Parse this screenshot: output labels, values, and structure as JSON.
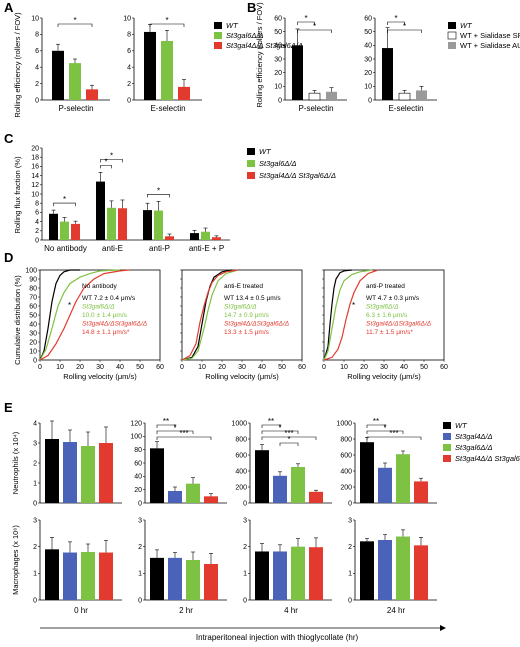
{
  "colors": {
    "black": "#000000",
    "green": "#7dc242",
    "red": "#e23a2e",
    "blue": "#4a62b8",
    "gray": "#9a9a9a",
    "white": "#ffffff"
  },
  "panel_labels": [
    "A",
    "B",
    "C",
    "D",
    "E"
  ],
  "bottom_label": "Intraperitoneal injection with thioglycollate (hr)",
  "chart_data": [
    {
      "panel": "A",
      "type": "bar",
      "ylabel": "Rolling efficiency (rollers / FOV)",
      "ylim": [
        0,
        10
      ],
      "legend": [
        "WT",
        "St3gal6Δ/Δ",
        "St3gal4Δ/Δ St3gal6Δ/Δ"
      ],
      "colors": [
        "#000000",
        "#7dc242",
        "#e23a2e"
      ],
      "groups": [
        {
          "category": "P-selectin",
          "values": [
            6.0,
            4.5,
            1.3
          ],
          "errors": [
            0.8,
            0.5,
            0.5
          ],
          "sig": [
            {
              "from": 0,
              "to": 2,
              "label": "*"
            }
          ]
        },
        {
          "category": "E-selectin",
          "values": [
            8.3,
            7.2,
            1.6
          ],
          "errors": [
            0.9,
            1.3,
            0.9
          ],
          "sig": [
            {
              "from": 0,
              "to": 2,
              "label": "*"
            }
          ]
        }
      ]
    },
    {
      "panel": "B",
      "type": "bar",
      "ylabel": "Rolling efficiency (rollers / FOV)",
      "ylim": [
        0,
        60
      ],
      "legend": [
        "WT",
        "WT + Sialidase SP",
        "WT + Sialidase AU"
      ],
      "colors": [
        "#000000",
        "#ffffff",
        "#9a9a9a"
      ],
      "groups": [
        {
          "category": "P-selectin",
          "values": [
            40,
            5,
            6
          ],
          "errors": [
            12,
            2,
            3
          ],
          "sig": [
            {
              "from": 0,
              "to": 1,
              "label": "*"
            },
            {
              "from": 0,
              "to": 2,
              "label": "*"
            }
          ]
        },
        {
          "category": "E-selectin",
          "values": [
            38,
            5,
            7
          ],
          "errors": [
            15,
            2,
            3
          ],
          "sig": [
            {
              "from": 0,
              "to": 1,
              "label": "*"
            },
            {
              "from": 0,
              "to": 2,
              "label": "*"
            }
          ]
        }
      ]
    },
    {
      "panel": "C",
      "type": "bar",
      "ylabel": "Rolling flux fraction (%)",
      "ylim": [
        0,
        20
      ],
      "yticks": [
        0,
        2,
        4,
        6,
        8,
        10,
        12,
        14,
        16,
        18,
        20
      ],
      "legend": [
        "WT",
        "St3gal6Δ/Δ",
        "St3gal4Δ/Δ St3gal6Δ/Δ"
      ],
      "colors": [
        "#000000",
        "#7dc242",
        "#e23a2e"
      ],
      "groups": [
        {
          "category": "No antibody",
          "values": [
            5.7,
            4.0,
            3.5
          ],
          "errors": [
            0.8,
            0.9,
            0.6
          ],
          "sig": [
            {
              "from": 0,
              "to": 2,
              "label": "*"
            }
          ]
        },
        {
          "category": "anti-E",
          "values": [
            12.7,
            7.0,
            6.9
          ],
          "errors": [
            2.0,
            1.5,
            1.8
          ],
          "sig": [
            {
              "from": 0,
              "to": 1,
              "label": "*"
            },
            {
              "from": 0,
              "to": 2,
              "label": "*"
            }
          ]
        },
        {
          "category": "anti-P",
          "values": [
            6.5,
            6.4,
            0.8
          ],
          "errors": [
            1.5,
            2.0,
            0.5
          ],
          "sig": [
            {
              "from": 0,
              "to": 2,
              "label": "*"
            }
          ]
        },
        {
          "category": "anti-E + P",
          "values": [
            1.5,
            1.8,
            0.6
          ],
          "errors": [
            0.6,
            0.8,
            0.3
          ],
          "sig": []
        }
      ]
    },
    {
      "panel": "D",
      "type": "line",
      "ylabel": "Cumulative distribution (%)",
      "xlabel": "Rolling velocity (μm/s)",
      "xlim": [
        0,
        60
      ],
      "ylim": [
        0,
        100
      ],
      "xticks": [
        0,
        10,
        20,
        30,
        40,
        50,
        60
      ],
      "yticks": [
        0,
        10,
        20,
        30,
        40,
        50,
        60,
        70,
        80,
        90,
        100
      ],
      "subplots": [
        {
          "title": "No antibody",
          "annotations": [
            {
              "text": "WT   7.2 ± 0.4 μm/s",
              "color": "#000000"
            },
            {
              "text": "St3gal6Δ/Δ",
              "color": "#7dc242"
            },
            {
              "text": "10.0 ± 1.4 μm/s",
              "color": "#7dc242"
            },
            {
              "text": "St3gal4Δ/ΔSt3gal6Δ/Δ",
              "color": "#e23a2e"
            },
            {
              "text": "14.8 ± 1.1 μm/s*",
              "color": "#e23a2e"
            }
          ],
          "star": "*",
          "series": [
            {
              "color": "#000000",
              "x": [
                0,
                2,
                4,
                6,
                8,
                10,
                12,
                15,
                20
              ],
              "y": [
                0,
                10,
                35,
                65,
                85,
                94,
                98,
                100,
                100
              ]
            },
            {
              "color": "#7dc242",
              "x": [
                0,
                3,
                6,
                9,
                12,
                15,
                20,
                25,
                30,
                40
              ],
              "y": [
                0,
                12,
                35,
                60,
                75,
                85,
                92,
                96,
                99,
                100
              ]
            },
            {
              "color": "#e23a2e",
              "x": [
                0,
                4,
                8,
                12,
                15,
                18,
                22,
                27,
                32,
                40,
                45
              ],
              "y": [
                0,
                5,
                18,
                35,
                50,
                65,
                80,
                90,
                96,
                99,
                100
              ]
            }
          ]
        },
        {
          "title": "anti-E treated",
          "annotations": [
            {
              "text": "WT   13.4 ± 0.5 μm/s",
              "color": "#000000"
            },
            {
              "text": "St3gal6Δ/Δ",
              "color": "#7dc242"
            },
            {
              "text": "14.7 ± 0.9 μm/s",
              "color": "#7dc242"
            },
            {
              "text": "St3gal4Δ/ΔSt3gal6Δ/Δ",
              "color": "#e23a2e"
            },
            {
              "text": "13.3 ± 1.5 μm/s",
              "color": "#e23a2e"
            }
          ],
          "series": [
            {
              "color": "#000000",
              "x": [
                0,
                5,
                8,
                10,
                12,
                14,
                16,
                20,
                25
              ],
              "y": [
                0,
                3,
                15,
                40,
                65,
                82,
                92,
                98,
                100
              ]
            },
            {
              "color": "#7dc242",
              "x": [
                0,
                5,
                8,
                11,
                13,
                15,
                18,
                22,
                28
              ],
              "y": [
                0,
                2,
                10,
                35,
                55,
                72,
                88,
                96,
                100
              ]
            },
            {
              "color": "#e23a2e",
              "x": [
                0,
                4,
                7,
                9,
                11,
                13,
                15,
                18,
                22,
                28
              ],
              "y": [
                0,
                5,
                18,
                42,
                60,
                75,
                86,
                94,
                98,
                100
              ]
            }
          ]
        },
        {
          "title": "anti-P treated",
          "annotations": [
            {
              "text": "WT   4.7 ± 0.3 μm/s",
              "color": "#000000"
            },
            {
              "text": "St3gal6Δ/Δ",
              "color": "#7dc242"
            },
            {
              "text": "6.3 ± 1.6 μm/s",
              "color": "#7dc242"
            },
            {
              "text": "St3gal4Δ/ΔSt3gal6Δ/Δ",
              "color": "#e23a2e"
            },
            {
              "text": "11.7 ± 1.5 μm/s*",
              "color": "#e23a2e"
            }
          ],
          "star": "*",
          "series": [
            {
              "color": "#000000",
              "x": [
                0,
                2,
                3,
                4,
                5,
                6,
                8,
                10,
                14
              ],
              "y": [
                0,
                15,
                40,
                62,
                80,
                90,
                97,
                99,
                100
              ]
            },
            {
              "color": "#7dc242",
              "x": [
                0,
                2,
                4,
                6,
                8,
                10,
                14,
                18,
                24
              ],
              "y": [
                0,
                10,
                35,
                60,
                78,
                88,
                95,
                98,
                100
              ]
            },
            {
              "color": "#e23a2e",
              "x": [
                0,
                4,
                7,
                9,
                11,
                13,
                15,
                18,
                22,
                27
              ],
              "y": [
                0,
                3,
                12,
                25,
                45,
                62,
                75,
                88,
                96,
                100
              ]
            }
          ]
        }
      ]
    },
    {
      "panel": "E",
      "type": "bar",
      "legend": [
        "WT",
        "St3gal4Δ/Δ",
        "St3gal6Δ/Δ",
        "St3gal4Δ/Δ St3gal6Δ/Δ"
      ],
      "colors": [
        "#000000",
        "#4a62b8",
        "#7dc242",
        "#e23a2e"
      ],
      "timepoints": [
        "0 hr",
        "2 hr",
        "4 hr",
        "24 hr"
      ],
      "rows": [
        {
          "ylabel": "Neutrophils (x 10⁴)",
          "panels": [
            {
              "ylim": [
                0,
                4
              ],
              "yticks": [
                0,
                1,
                2,
                3,
                4
              ],
              "values": [
                3.2,
                3.05,
                2.85,
                3.0
              ],
              "errors": [
                0.9,
                0.6,
                0.7,
                0.8
              ],
              "sig": []
            },
            {
              "ylim": [
                0,
                120
              ],
              "yticks": [
                0,
                20,
                40,
                60,
                80,
                100,
                120
              ],
              "values": [
                82,
                18,
                29,
                10
              ],
              "errors": [
                10,
                6,
                9,
                4
              ],
              "sig": [
                {
                  "from": 0,
                  "to": 1,
                  "label": "**"
                },
                {
                  "from": 0,
                  "to": 2,
                  "label": "*"
                },
                {
                  "from": 0,
                  "to": 3,
                  "label": "***"
                }
              ]
            },
            {
              "ylim": [
                0,
                1000
              ],
              "yticks": [
                0,
                200,
                400,
                600,
                800,
                1000
              ],
              "values": [
                660,
                340,
                450,
                140
              ],
              "errors": [
                70,
                50,
                40,
                20
              ],
              "sig": [
                {
                  "from": 0,
                  "to": 1,
                  "label": "**"
                },
                {
                  "from": 0,
                  "to": 2,
                  "label": "*"
                },
                {
                  "from": 0,
                  "to": 3,
                  "label": "***"
                },
                {
                  "from": 1,
                  "to": 2,
                  "label": "*"
                }
              ]
            },
            {
              "ylim": [
                0,
                1000
              ],
              "yticks": [
                0,
                200,
                400,
                600,
                800,
                1000
              ],
              "values": [
                760,
                440,
                610,
                270
              ],
              "errors": [
                60,
                60,
                40,
                40
              ],
              "sig": [
                {
                  "from": 0,
                  "to": 1,
                  "label": "**"
                },
                {
                  "from": 0,
                  "to": 2,
                  "label": "*"
                },
                {
                  "from": 0,
                  "to": 3,
                  "label": "***"
                }
              ]
            }
          ]
        },
        {
          "ylabel": "Macrophages (x 10⁶)",
          "panels": [
            {
              "ylim": [
                0,
                3
              ],
              "yticks": [
                0,
                1,
                2,
                3
              ],
              "values": [
                1.9,
                1.78,
                1.8,
                1.78
              ],
              "errors": [
                0.45,
                0.4,
                0.3,
                0.45
              ],
              "sig": []
            },
            {
              "ylim": [
                0,
                3
              ],
              "yticks": [
                0,
                1,
                2,
                3
              ],
              "values": [
                1.58,
                1.58,
                1.5,
                1.35
              ],
              "errors": [
                0.3,
                0.2,
                0.3,
                0.4
              ],
              "sig": []
            },
            {
              "ylim": [
                0,
                3
              ],
              "yticks": [
                0,
                1,
                2,
                3
              ],
              "values": [
                1.82,
                1.82,
                2.0,
                1.98
              ],
              "errors": [
                0.3,
                0.25,
                0.3,
                0.35
              ],
              "sig": []
            },
            {
              "ylim": [
                0,
                3
              ],
              "yticks": [
                0,
                1,
                2,
                3
              ],
              "values": [
                2.2,
                2.25,
                2.38,
                2.05
              ],
              "errors": [
                0.1,
                0.2,
                0.25,
                0.3
              ],
              "sig": []
            }
          ]
        }
      ]
    }
  ]
}
